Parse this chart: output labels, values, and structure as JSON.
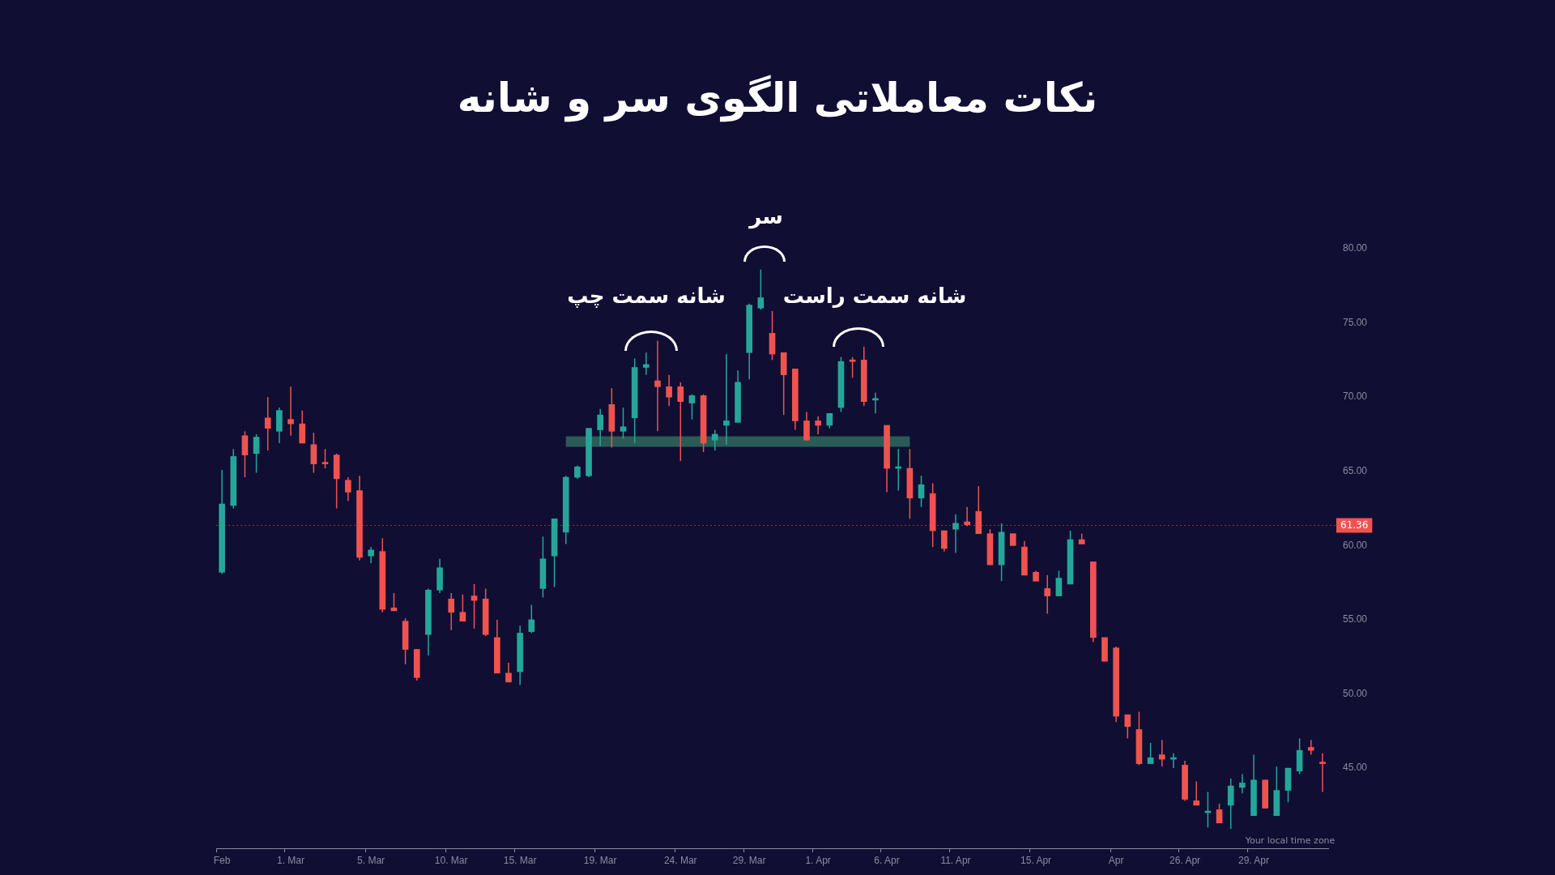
{
  "chart_data": {
    "type": "candlestick",
    "title": "نکات معاملاتی الگوی سر و شانه",
    "categories": [
      "Feb",
      null,
      null,
      null,
      null,
      null,
      "1. Mar",
      null,
      null,
      null,
      null,
      null,
      null,
      "5. Mar",
      null,
      null,
      null,
      null,
      null,
      null,
      "10. Mar",
      null,
      null,
      null,
      null,
      null,
      "15. Mar",
      null,
      null,
      null,
      null,
      null,
      null,
      "19. Mar",
      null,
      null,
      null,
      null,
      null,
      null,
      "24. Mar",
      null,
      null,
      null,
      null,
      null,
      "29. Mar",
      null,
      null,
      null,
      null,
      null,
      "1. Apr",
      null,
      null,
      null,
      null,
      null,
      "6. Apr",
      null,
      null,
      null,
      null,
      null,
      "11. Apr",
      null,
      null,
      null,
      null,
      null,
      null,
      "15. Apr",
      null,
      null,
      null,
      null,
      null,
      null,
      "Apr",
      null,
      null,
      null,
      null,
      null,
      "26. Apr",
      null,
      null,
      null,
      null,
      null,
      "29. Apr",
      null,
      null,
      null,
      null,
      null,
      null
    ],
    "series": [
      {
        "ohlc": [
          [
            58.2,
            65.1,
            58.1,
            62.8
          ],
          [
            62.7,
            66.5,
            62.5,
            66.0
          ],
          [
            67.4,
            67.7,
            64.6,
            66.1
          ],
          [
            66.2,
            67.5,
            64.9,
            67.3
          ],
          [
            68.6,
            70.0,
            66.4,
            67.9
          ],
          [
            67.7,
            69.3,
            66.9,
            69.1
          ],
          [
            68.5,
            70.7,
            67.4,
            68.2
          ],
          [
            68.2,
            69.1,
            66.9,
            66.9
          ],
          [
            66.8,
            67.6,
            64.9,
            65.5
          ],
          [
            65.6,
            66.5,
            65.2,
            65.5
          ],
          [
            66.1,
            66.2,
            62.5,
            64.5
          ],
          [
            64.4,
            64.6,
            63.0,
            63.6
          ],
          [
            63.7,
            64.7,
            59.0,
            59.2
          ],
          [
            59.3,
            59.9,
            58.8,
            59.7
          ],
          [
            59.6,
            60.5,
            55.5,
            55.7
          ],
          [
            55.8,
            56.8,
            55.6,
            55.6
          ],
          [
            54.9,
            55.1,
            52.0,
            53.0
          ],
          [
            53.0,
            53.0,
            50.9,
            51.1
          ],
          [
            54.0,
            57.1,
            52.6,
            57.0
          ],
          [
            57.0,
            59.1,
            56.8,
            58.5
          ],
          [
            56.4,
            56.8,
            54.3,
            55.5
          ],
          [
            55.5,
            56.7,
            54.9,
            54.9
          ],
          [
            56.6,
            57.4,
            54.4,
            56.3
          ],
          [
            56.4,
            57.1,
            53.9,
            54.0
          ],
          [
            53.8,
            55.0,
            51.4,
            51.4
          ],
          [
            51.4,
            52.1,
            50.8,
            50.8
          ],
          [
            51.5,
            54.6,
            50.6,
            54.1
          ],
          [
            54.2,
            56.0,
            54.1,
            55.0
          ],
          [
            57.1,
            60.6,
            56.5,
            59.1
          ],
          [
            59.3,
            61.8,
            57.2,
            61.8
          ],
          [
            60.9,
            64.7,
            60.1,
            64.6
          ],
          [
            64.6,
            65.4,
            64.5,
            65.3
          ],
          [
            64.7,
            67.9,
            64.6,
            67.9
          ],
          [
            67.8,
            69.2,
            66.7,
            68.8
          ],
          [
            69.5,
            70.6,
            66.6,
            67.7
          ],
          [
            67.7,
            69.3,
            67.2,
            68.0
          ],
          [
            68.6,
            72.6,
            66.9,
            72.0
          ],
          [
            72.0,
            73.0,
            71.5,
            72.2
          ],
          [
            71.1,
            73.8,
            67.7,
            70.7
          ],
          [
            70.7,
            71.5,
            69.4,
            70.0
          ],
          [
            70.7,
            71.0,
            65.7,
            69.7
          ],
          [
            69.6,
            70.2,
            68.5,
            70.1
          ],
          [
            70.1,
            70.2,
            66.3,
            66.9
          ],
          [
            67.1,
            67.8,
            66.4,
            67.5
          ],
          [
            68.1,
            72.9,
            66.8,
            68.4
          ],
          [
            68.3,
            71.8,
            68.3,
            71.0
          ],
          [
            73.0,
            76.3,
            71.2,
            76.2
          ],
          [
            76.0,
            78.6,
            75.9,
            76.7
          ],
          [
            74.3,
            75.8,
            72.5,
            72.9
          ],
          [
            73.0,
            73.0,
            68.8,
            71.5
          ],
          [
            71.9,
            71.9,
            67.8,
            68.4
          ],
          [
            68.4,
            69.0,
            67.1,
            67.1
          ],
          [
            68.4,
            68.7,
            67.5,
            68.1
          ],
          [
            68.1,
            68.9,
            67.9,
            68.9
          ],
          [
            69.3,
            72.7,
            69.0,
            72.4
          ],
          [
            72.5,
            72.7,
            71.3,
            72.4
          ],
          [
            72.5,
            73.4,
            69.4,
            69.7
          ],
          [
            69.8,
            70.3,
            68.9,
            69.9
          ],
          [
            68.1,
            68.1,
            63.6,
            65.2
          ],
          [
            65.2,
            66.5,
            63.7,
            65.3
          ],
          [
            65.2,
            66.5,
            61.8,
            63.2
          ],
          [
            63.2,
            64.7,
            62.6,
            64.1
          ],
          [
            63.5,
            64.2,
            59.9,
            61.0
          ],
          [
            61.0,
            61.0,
            59.6,
            59.8
          ],
          [
            61.1,
            62.1,
            59.5,
            61.5
          ],
          [
            61.6,
            62.6,
            61.3,
            61.4
          ],
          [
            62.3,
            64.0,
            60.8,
            60.8
          ],
          [
            60.8,
            61.1,
            58.7,
            58.7
          ],
          [
            58.7,
            61.5,
            57.6,
            60.9
          ],
          [
            60.8,
            60.8,
            60.0,
            60.0
          ],
          [
            59.9,
            60.3,
            58.0,
            58.0
          ],
          [
            58.2,
            58.3,
            57.6,
            57.6
          ],
          [
            57.1,
            58.0,
            55.4,
            56.6
          ],
          [
            56.6,
            58.3,
            56.6,
            57.8
          ],
          [
            57.4,
            61.0,
            57.4,
            60.4
          ],
          [
            60.4,
            60.8,
            60.1,
            60.1
          ],
          [
            58.9,
            58.9,
            53.5,
            53.8
          ],
          [
            53.8,
            53.8,
            52.2,
            52.2
          ],
          [
            53.1,
            53.2,
            48.1,
            48.5
          ],
          [
            48.6,
            48.6,
            47.0,
            47.8
          ],
          [
            47.6,
            48.8,
            45.2,
            45.3
          ],
          [
            45.3,
            46.7,
            45.3,
            45.7
          ],
          [
            45.9,
            46.9,
            45.1,
            45.6
          ],
          [
            45.6,
            46.0,
            45.0,
            45.7
          ],
          [
            45.2,
            45.5,
            42.8,
            42.9
          ],
          [
            42.8,
            44.1,
            42.5,
            42.5
          ],
          [
            42.0,
            43.4,
            41.0,
            42.1
          ],
          [
            42.2,
            42.6,
            41.3,
            41.3
          ],
          [
            42.5,
            44.3,
            40.9,
            43.8
          ],
          [
            43.7,
            44.6,
            43.3,
            44.0
          ],
          [
            41.8,
            45.9,
            41.8,
            44.2
          ],
          [
            44.2,
            44.2,
            42.3,
            42.3
          ],
          [
            41.8,
            45.1,
            41.8,
            43.5
          ],
          [
            43.5,
            45.0,
            42.7,
            45.0
          ],
          [
            44.8,
            47.0,
            44.6,
            46.2
          ],
          [
            46.4,
            46.9,
            45.9,
            46.2
          ],
          [
            45.4,
            46.0,
            43.4,
            45.3
          ]
        ],
        "colors": [
          "#26a69a",
          "#26a69a",
          "#ef5350",
          "#26a69a",
          "#ef5350",
          "#26a69a",
          "#ef5350",
          "#ef5350",
          "#ef5350",
          "#ef5350",
          "#ef5350",
          "#ef5350",
          "#ef5350",
          "#26a69a",
          "#ef5350",
          "#ef5350",
          "#ef5350",
          "#ef5350",
          "#26a69a",
          "#26a69a",
          "#ef5350",
          "#ef5350",
          "#ef5350",
          "#ef5350",
          "#ef5350",
          "#ef5350",
          "#26a69a",
          "#26a69a",
          "#26a69a",
          "#26a69a",
          "#26a69a",
          "#26a69a",
          "#26a69a",
          "#26a69a",
          "#ef5350",
          "#26a69a",
          "#26a69a",
          "#26a69a",
          "#ef5350",
          "#ef5350",
          "#ef5350",
          "#26a69a",
          "#ef5350",
          "#26a69a",
          "#26a69a",
          "#26a69a",
          "#26a69a",
          "#26a69a",
          "#ef5350",
          "#ef5350",
          "#ef5350",
          "#ef5350",
          "#ef5350",
          "#26a69a",
          "#26a69a",
          "#ef5350",
          "#ef5350",
          "#26a69a",
          "#ef5350",
          "#26a69a",
          "#ef5350",
          "#26a69a",
          "#ef5350",
          "#ef5350",
          "#26a69a",
          "#ef5350",
          "#ef5350",
          "#ef5350",
          "#26a69a",
          "#ef5350",
          "#ef5350",
          "#ef5350",
          "#ef5350",
          "#26a69a",
          "#26a69a",
          "#ef5350",
          "#ef5350",
          "#ef5350",
          "#ef5350",
          "#ef5350",
          "#ef5350",
          "#26a69a",
          "#ef5350",
          "#26a69a",
          "#ef5350",
          "#ef5350",
          "#26a69a",
          "#ef5350",
          "#26a69a",
          "#26a69a",
          "#26a69a",
          "#ef5350",
          "#26a69a",
          "#26a69a",
          "#26a69a",
          "#ef5350",
          "#ef5350"
        ]
      },
      {
        "type": "line",
        "color": "#2a5b57",
        "values": [
          null,
          null,
          null,
          null,
          null,
          null,
          null,
          null,
          null,
          null,
          null,
          null,
          null,
          null,
          null,
          null,
          null,
          null,
          null,
          null,
          null,
          null,
          null,
          null,
          null,
          null,
          null,
          null,
          null,
          null,
          67.0,
          67.0,
          67.0,
          67.0,
          67.0,
          67.0,
          67.0,
          67.0,
          67.0,
          67.0,
          67.0,
          67.0,
          67.0,
          67.0,
          67.0,
          67.0,
          67.0,
          67.0,
          67.0,
          67.0,
          67.0,
          67.0,
          67.0,
          67.0,
          67.0,
          67.0,
          67.0,
          67.0,
          67.0,
          67.0,
          67.0,
          null,
          null,
          null,
          null,
          null,
          null,
          null,
          null,
          null,
          null,
          null,
          null,
          null,
          null,
          null,
          null,
          null,
          null,
          null,
          null,
          null,
          null,
          null,
          null,
          null,
          null,
          null,
          null,
          null,
          null,
          null,
          null,
          null,
          null,
          null,
          null
        ]
      }
    ],
    "ylim": [
      39.6,
      80
    ],
    "yticks": [
      {
        "value": 45,
        "label": "45.00"
      },
      {
        "value": 50,
        "label": "50.00"
      },
      {
        "value": 55,
        "label": "55.00"
      },
      {
        "value": 60,
        "label": "60.00"
      },
      {
        "value": 65,
        "label": "65.00"
      },
      {
        "value": 70,
        "label": "70.00"
      },
      {
        "value": 75,
        "label": "75.00"
      },
      {
        "value": 80,
        "label": "80.00"
      }
    ],
    "ref_lines": [
      {
        "axis": "y",
        "value": 61.36,
        "label": "61.36",
        "color": "#ef5350"
      }
    ],
    "annotations": [
      "سر",
      "شانه سمت چپ",
      "شانه سمت راست",
      "Your local time zone"
    ],
    "grid": false,
    "legend": false
  }
}
